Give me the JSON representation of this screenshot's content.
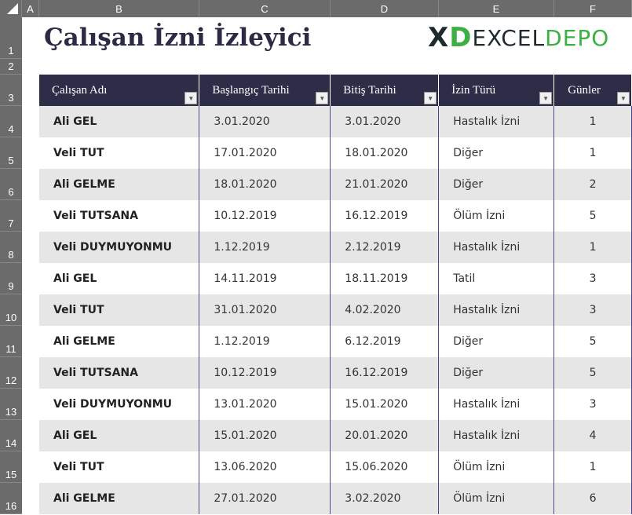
{
  "columns": [
    "A",
    "B",
    "C",
    "D",
    "E",
    "F"
  ],
  "rows": [
    "1",
    "2",
    "3",
    "4",
    "5",
    "6",
    "7",
    "8",
    "9",
    "10",
    "11",
    "12",
    "13",
    "14",
    "15",
    "16"
  ],
  "title": "Çalışan İzni İzleyici",
  "headers": [
    "Çalışan Adı",
    "Başlangıç Tarihi",
    "Bitiş Tarihi",
    "İzin Türü",
    "Günler"
  ],
  "data": [
    [
      "Ali GEL",
      "3.01.2020",
      "3.01.2020",
      "Hastalık İzni",
      "1"
    ],
    [
      "Veli TUT",
      "17.01.2020",
      "18.01.2020",
      "Diğer",
      "1"
    ],
    [
      "Ali GELME",
      "18.01.2020",
      "21.01.2020",
      "Diğer",
      "2"
    ],
    [
      "Veli TUTSANA",
      "10.12.2019",
      "16.12.2019",
      "Ölüm İzni",
      "5"
    ],
    [
      "Veli DUYMUYONMU",
      "1.12.2019",
      "2.12.2019",
      "Hastalık İzni",
      "1"
    ],
    [
      "Ali GEL",
      "14.11.2019",
      "18.11.2019",
      "Tatil",
      "3"
    ],
    [
      "Veli TUT",
      "31.01.2020",
      "4.02.2020",
      "Hastalık İzni",
      "3"
    ],
    [
      "Ali GELME",
      "1.12.2019",
      "6.12.2019",
      "Diğer",
      "5"
    ],
    [
      "Veli TUTSANA",
      "10.12.2019",
      "16.12.2019",
      "Diğer",
      "5"
    ],
    [
      "Veli DUYMUYONMU",
      "13.01.2020",
      "15.01.2020",
      "Hastalık İzni",
      "3"
    ],
    [
      "Ali GEL",
      "15.01.2020",
      "20.01.2020",
      "Hastalık İzni",
      "4"
    ],
    [
      "Veli TUT",
      "13.06.2020",
      "15.06.2020",
      "Ölüm İzni",
      "1"
    ],
    [
      "Ali GELME",
      "27.01.2020",
      "3.02.2020",
      "Ölüm İzni",
      "6"
    ]
  ],
  "logo": {
    "x": "X",
    "d": "D",
    "excel": "EXCEL",
    "depo": "DEPO"
  }
}
